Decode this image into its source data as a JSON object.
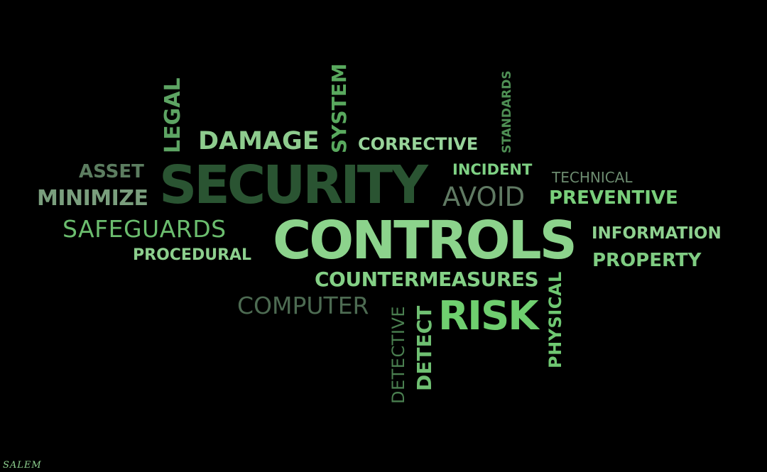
{
  "words": {
    "security": "SECURITY",
    "controls": "CONTROLS",
    "risk": "RISK",
    "damage": "DAMAGE",
    "corrective": "CORRECTIVE",
    "system": "SYSTEM",
    "legal": "LEGAL",
    "standards": "STANDARDS",
    "asset": "ASSET",
    "minimize": "MINIMIZE",
    "incident": "INCIDENT",
    "technical": "TECHNICAL",
    "avoid": "AVOID",
    "preventive": "PREVENTIVE",
    "safeguards": "SAFEGUARDS",
    "information": "INFORMATION",
    "procedural": "PROCEDURAL",
    "property": "PROPERTY",
    "countermeasures": "COUNTERMEASURES",
    "computer": "COMPUTER",
    "physical": "PHYSICAL",
    "detective": "DETECTIVE",
    "detect": "DETECT"
  },
  "signature": "SALEM",
  "colors": {
    "background": "#000000",
    "security": "#2a5432",
    "controls": "#8cd38c",
    "risk": "#6fcf6f",
    "damage": "#8ecc8e",
    "corrective": "#98d49a",
    "system": "#59a95e",
    "legal": "#5da463",
    "standards": "#4e8f54",
    "asset": "#5c7d60",
    "minimize": "#7a9e7d",
    "incident": "#7fd184",
    "technical": "#6c8b6f",
    "avoid": "#607a63",
    "preventive": "#79cf7b",
    "safeguards": "#6bbd6e",
    "information": "#8ed18f",
    "procedural": "#8ccf8d",
    "property": "#7fcc82",
    "countermeasures": "#84d086",
    "computer": "#4d6b52",
    "physical": "#6fc872",
    "detective": "#4a7f50",
    "detect": "#6fbf72",
    "signature": "#8ed18f"
  }
}
